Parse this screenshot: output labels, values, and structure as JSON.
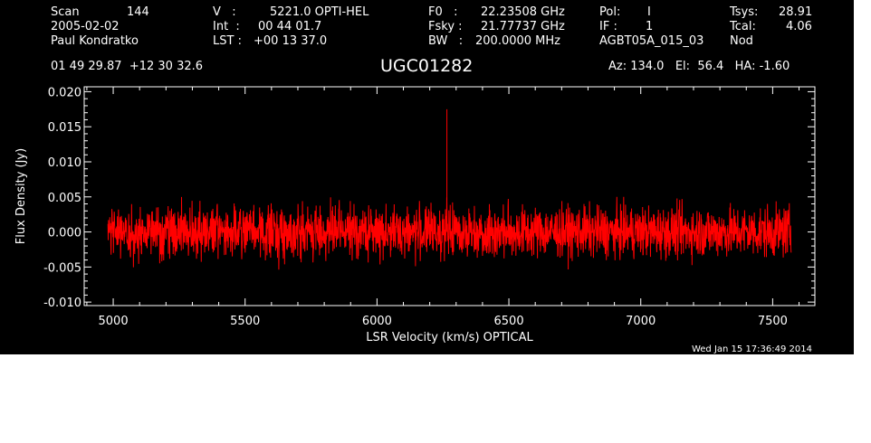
{
  "header": {
    "scan_label": "Scan",
    "scan_value": "144",
    "date": "2005-02-02",
    "observer": "Paul Kondratko",
    "v_label": "V   :",
    "v_value": "5221.0 OPTI-HEL",
    "int_label": "Int  :",
    "int_value": "00 44 01.7",
    "lst_label": "LST :",
    "lst_value": "+00 13 37.0",
    "f0_label": "F0   :",
    "f0_value": "22.23508 GHz",
    "fsky_label": "Fsky :",
    "fsky_value": "21.77737 GHz",
    "bw_label": "BW   :",
    "bw_value": "200.0000 MHz",
    "pol_label": "Pol:",
    "pol_value": "I",
    "if_label": "IF :",
    "if_value": "1",
    "project": "AGBT05A_015_03",
    "tsys_label": "Tsys:",
    "tsys_value": "28.91",
    "tcal_label": "Tcal:",
    "tcal_value": "4.06",
    "mode": "Nod",
    "coords": "01 49 29.87  +12 30 32.6",
    "source": "UGC01282",
    "az_el_ha": "Az: 134.0   El:  56.4   HA: -1.60"
  },
  "timestamp": "Wed Jan 15 17:36:49 2014",
  "colors": {
    "background": "#000000",
    "axes": "#ffffff",
    "trace": "#ff0000"
  },
  "chart_data": {
    "type": "line",
    "xlabel": "LSR Velocity (km/s) OPTICAL",
    "ylabel": "Flux Density (Jy)",
    "xlim": [
      4890,
      7660
    ],
    "ylim": [
      -0.0105,
      0.0207
    ],
    "x_ticks": [
      5000,
      5500,
      6000,
      6500,
      7000,
      7500
    ],
    "x_tick_labels": [
      "5000",
      "5500",
      "6000",
      "6500",
      "7000",
      "7500"
    ],
    "y_ticks": [
      -0.01,
      -0.005,
      0.0,
      0.005,
      0.01,
      0.015,
      0.02
    ],
    "y_tick_labels": [
      "-0.010",
      "-0.005",
      "0.000",
      "0.005",
      "0.010",
      "0.015",
      "0.020"
    ],
    "series": [
      {
        "x_range": [
          4980,
          7570
        ],
        "noise_rms": 0.0018,
        "noise_range": [
          -0.0067,
          0.005
        ],
        "spike": {
          "x": 6265,
          "y": 0.0175
        }
      }
    ]
  }
}
